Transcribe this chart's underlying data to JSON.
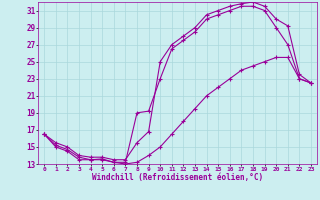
{
  "xlabel": "Windchill (Refroidissement éolien,°C)",
  "bg_color": "#cceef0",
  "grid_color": "#aad8dc",
  "line_color": "#990099",
  "xlim": [
    -0.5,
    23.5
  ],
  "ylim": [
    13,
    32
  ],
  "xticks": [
    0,
    1,
    2,
    3,
    4,
    5,
    6,
    7,
    8,
    9,
    10,
    11,
    12,
    13,
    14,
    15,
    16,
    17,
    18,
    19,
    20,
    21,
    22,
    23
  ],
  "yticks": [
    13,
    15,
    17,
    19,
    21,
    23,
    25,
    27,
    29,
    31
  ],
  "series1_x": [
    0,
    1,
    2,
    3,
    4,
    5,
    6,
    7,
    8,
    9,
    10,
    11,
    12,
    13,
    14,
    15,
    16,
    17,
    18,
    19,
    20,
    21,
    22,
    23
  ],
  "series1_y": [
    16.5,
    15.2,
    14.7,
    13.8,
    13.5,
    13.6,
    13.2,
    13.2,
    19.0,
    19.2,
    23.0,
    26.5,
    27.5,
    28.5,
    30.0,
    30.5,
    31.0,
    31.5,
    31.5,
    31.0,
    29.0,
    27.0,
    23.0,
    22.5
  ],
  "series2_x": [
    0,
    1,
    2,
    3,
    4,
    5,
    6,
    7,
    8,
    9,
    10,
    11,
    12,
    13,
    14,
    15,
    16,
    17,
    18,
    19,
    20,
    21,
    22,
    23
  ],
  "series2_y": [
    16.5,
    15.5,
    15.0,
    14.0,
    13.8,
    13.8,
    13.5,
    13.5,
    15.5,
    16.8,
    25.0,
    27.0,
    28.0,
    29.0,
    30.5,
    31.0,
    31.5,
    31.8,
    32.0,
    31.5,
    30.0,
    29.2,
    23.5,
    22.5
  ],
  "series3_x": [
    0,
    1,
    2,
    3,
    4,
    5,
    6,
    7,
    8,
    9,
    10,
    11,
    12,
    13,
    14,
    15,
    16,
    17,
    18,
    19,
    20,
    21,
    22,
    23
  ],
  "series3_y": [
    16.5,
    15.0,
    14.5,
    13.5,
    13.5,
    13.5,
    13.2,
    13.0,
    13.2,
    14.0,
    15.0,
    16.5,
    18.0,
    19.5,
    21.0,
    22.0,
    23.0,
    24.0,
    24.5,
    25.0,
    25.5,
    25.5,
    23.0,
    22.5
  ]
}
